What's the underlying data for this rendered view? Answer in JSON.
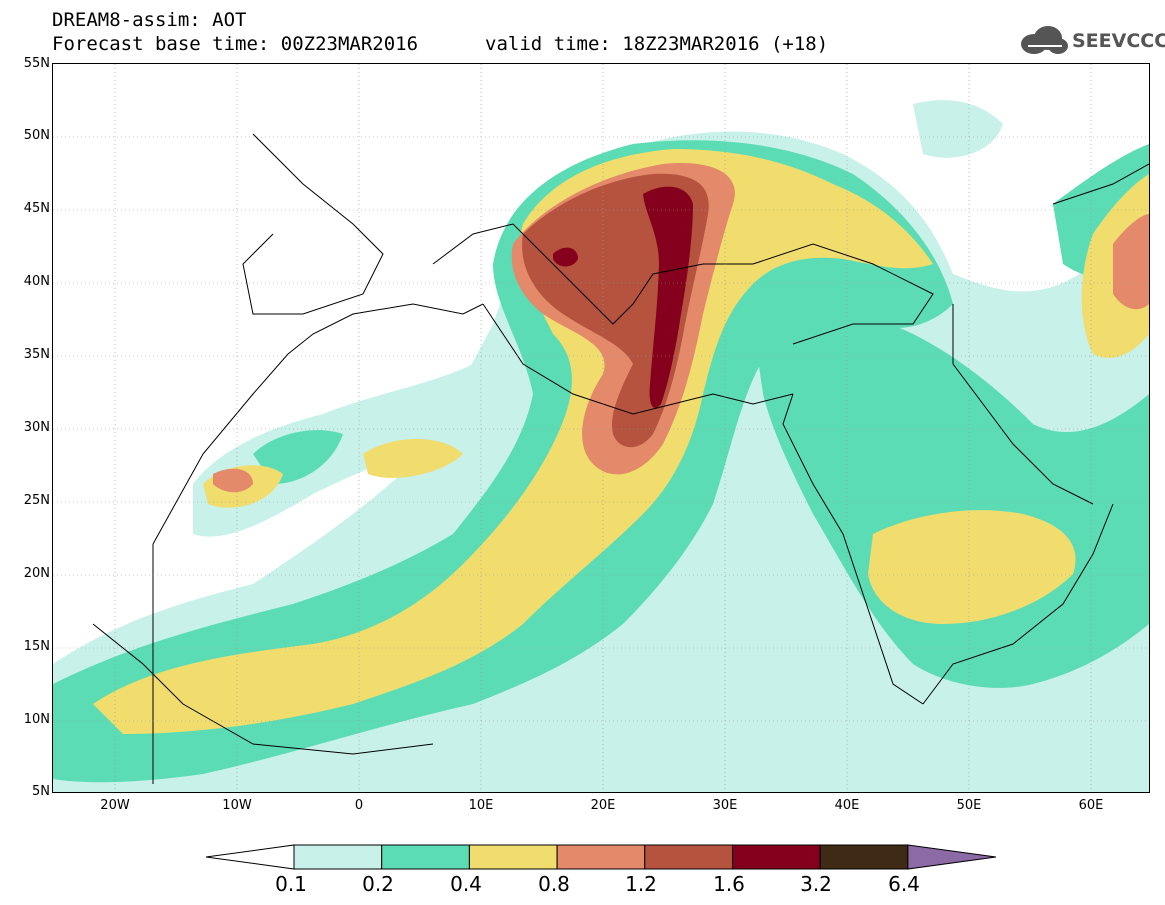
{
  "title": {
    "line1": "DREAM8-assim: AOT",
    "line2": "Forecast base time: 00Z23MAR2016",
    "valid": "valid time: 18Z23MAR2016 (+18)"
  },
  "logo": {
    "text": "SEEVCCC",
    "icon": "cloud-icon"
  },
  "map": {
    "lat_labels": [
      "55N",
      "50N",
      "45N",
      "40N",
      "35N",
      "30N",
      "25N",
      "20N",
      "15N",
      "10N",
      "5N"
    ],
    "lon_labels": [
      "20W",
      "10W",
      "0",
      "10E",
      "20E",
      "30E",
      "40E",
      "50E",
      "60E"
    ],
    "lon_range": [
      -25,
      65
    ],
    "lat_range": [
      5,
      55
    ],
    "variable": "AOT"
  },
  "colorbar": {
    "levels": [
      "0.1",
      "0.2",
      "0.4",
      "0.8",
      "1.2",
      "1.6",
      "3.2",
      "6.4"
    ],
    "colors": [
      "#c8f1ea",
      "#5cdcb4",
      "#f0dd6e",
      "#e4896a",
      "#b5533f",
      "#84001c",
      "#3f2a15",
      "#8c6aa6"
    ],
    "under_color": "#ffffff"
  }
}
